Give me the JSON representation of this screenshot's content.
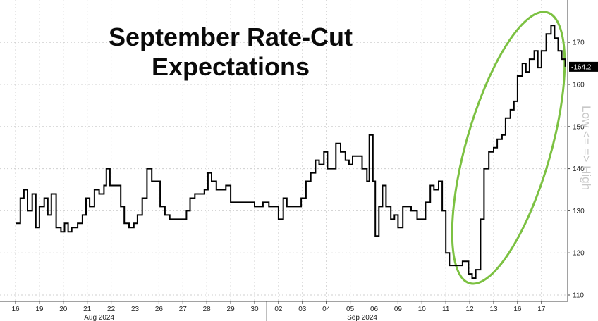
{
  "chart_data": {
    "type": "line",
    "title": "September Rate-Cut Expectations",
    "title_lines": [
      "September Rate-Cut",
      "Expectations"
    ],
    "side_label": "Low <= => High",
    "ylim": [
      110,
      177
    ],
    "y_ticks": [
      110,
      120,
      130,
      140,
      150,
      160,
      170
    ],
    "last_value_label": "-164.2",
    "last_value": 164.2,
    "x_ticks": [
      "16",
      "19",
      "20",
      "21",
      "22",
      "23",
      "26",
      "27",
      "28",
      "29",
      "30",
      "02",
      "03",
      "04",
      "05",
      "06",
      "09",
      "10",
      "11",
      "12",
      "13",
      "16",
      "17"
    ],
    "month_labels": [
      {
        "label": "Aug 2024",
        "tick_index": 3.5
      },
      {
        "label": "Sep 2024",
        "tick_index": 14.5
      }
    ],
    "series": [
      {
        "values": [
          [
            0,
            127
          ],
          [
            0.2,
            133
          ],
          [
            0.35,
            135
          ],
          [
            0.5,
            130
          ],
          [
            0.7,
            134
          ],
          [
            0.85,
            126
          ],
          [
            1.0,
            131
          ],
          [
            1.2,
            133
          ],
          [
            1.35,
            129
          ],
          [
            1.5,
            134
          ],
          [
            1.7,
            126
          ],
          [
            1.9,
            125
          ],
          [
            2.05,
            127
          ],
          [
            2.2,
            125
          ],
          [
            2.35,
            126
          ],
          [
            2.6,
            127
          ],
          [
            2.8,
            129
          ],
          [
            2.95,
            133
          ],
          [
            3.1,
            131
          ],
          [
            3.3,
            135
          ],
          [
            3.5,
            134
          ],
          [
            3.7,
            136
          ],
          [
            3.8,
            140
          ],
          [
            3.95,
            136
          ],
          [
            4.2,
            136
          ],
          [
            4.4,
            131
          ],
          [
            4.55,
            127
          ],
          [
            4.75,
            126
          ],
          [
            4.95,
            127
          ],
          [
            5.1,
            129
          ],
          [
            5.3,
            133
          ],
          [
            5.5,
            140
          ],
          [
            5.7,
            137
          ],
          [
            5.9,
            137
          ],
          [
            6.05,
            131
          ],
          [
            6.25,
            129
          ],
          [
            6.45,
            128
          ],
          [
            6.7,
            128
          ],
          [
            6.95,
            128
          ],
          [
            7.15,
            130
          ],
          [
            7.3,
            133
          ],
          [
            7.5,
            134
          ],
          [
            7.7,
            134
          ],
          [
            7.9,
            135
          ],
          [
            8.05,
            139
          ],
          [
            8.2,
            137
          ],
          [
            8.4,
            135
          ],
          [
            8.65,
            135
          ],
          [
            8.8,
            136
          ],
          [
            9.0,
            132
          ],
          [
            9.2,
            132
          ],
          [
            9.5,
            132
          ],
          [
            9.8,
            132
          ],
          [
            10.0,
            131
          ],
          [
            10.2,
            131
          ],
          [
            10.35,
            132
          ],
          [
            10.6,
            131
          ],
          [
            10.8,
            131
          ],
          [
            11.0,
            128
          ],
          [
            11.2,
            133
          ],
          [
            11.35,
            131
          ],
          [
            11.55,
            131
          ],
          [
            11.75,
            131
          ],
          [
            11.95,
            133
          ],
          [
            12.15,
            137
          ],
          [
            12.35,
            139
          ],
          [
            12.55,
            142
          ],
          [
            12.7,
            141
          ],
          [
            12.9,
            144
          ],
          [
            13.05,
            140
          ],
          [
            13.2,
            140
          ],
          [
            13.4,
            146
          ],
          [
            13.6,
            144
          ],
          [
            13.8,
            142
          ],
          [
            13.95,
            141
          ],
          [
            14.1,
            143
          ],
          [
            14.3,
            143
          ],
          [
            14.5,
            140
          ],
          [
            14.7,
            137
          ],
          [
            14.8,
            148
          ],
          [
            14.95,
            137
          ],
          [
            15.05,
            124
          ],
          [
            15.2,
            131
          ],
          [
            15.35,
            136
          ],
          [
            15.5,
            131
          ],
          [
            15.7,
            128
          ],
          [
            15.85,
            129
          ],
          [
            16.0,
            126
          ],
          [
            16.2,
            131
          ],
          [
            16.4,
            131
          ],
          [
            16.55,
            130
          ],
          [
            16.8,
            128
          ],
          [
            16.95,
            128
          ],
          [
            17.15,
            132
          ],
          [
            17.35,
            136
          ],
          [
            17.5,
            135
          ],
          [
            17.7,
            137
          ],
          [
            17.85,
            130
          ],
          [
            18.0,
            120
          ],
          [
            18.15,
            117
          ],
          [
            18.35,
            117
          ],
          [
            18.55,
            117
          ],
          [
            18.7,
            118
          ],
          [
            18.95,
            115
          ],
          [
            19.1,
            114
          ],
          [
            19.25,
            116
          ],
          [
            19.45,
            128
          ],
          [
            19.6,
            140
          ],
          [
            19.8,
            144
          ],
          [
            20.0,
            145
          ],
          [
            20.15,
            147
          ],
          [
            20.35,
            148
          ],
          [
            20.5,
            152
          ],
          [
            20.7,
            154
          ],
          [
            20.85,
            156
          ],
          [
            21.0,
            162
          ],
          [
            21.2,
            165
          ],
          [
            21.35,
            163
          ],
          [
            21.5,
            166
          ],
          [
            21.7,
            168
          ],
          [
            21.85,
            164
          ],
          [
            22.0,
            168
          ],
          [
            22.2,
            172
          ],
          [
            22.4,
            174
          ],
          [
            22.55,
            171
          ],
          [
            22.7,
            168
          ],
          [
            22.85,
            166
          ],
          [
            23.0,
            164.2
          ]
        ]
      }
    ]
  },
  "colors": {
    "line": "#000000",
    "grid": "#cfcfcf",
    "ellipse": "#7cc142",
    "last_tag_bg": "#000000"
  }
}
